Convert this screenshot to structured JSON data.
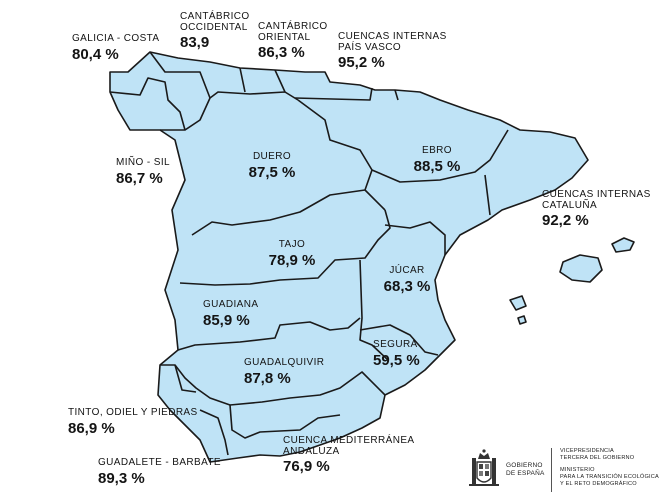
{
  "colors": {
    "basin_fill": "#bfe3f6",
    "border": "#1a1a1a",
    "text": "#141414"
  },
  "basins": [
    {
      "id": "galicia-costa",
      "name": "GALICIA - COSTA",
      "value": "80,4 %"
    },
    {
      "id": "cantabrico-occidental",
      "name": "CANTÁBRICO OCCIDENTAL",
      "name_lines": [
        "CANTÁBRICO",
        "OCCIDENTAL"
      ],
      "value": "83,9"
    },
    {
      "id": "cantabrico-oriental",
      "name": "CANTÁBRICO ORIENTAL",
      "name_lines": [
        "CANTÁBRICO",
        "ORIENTAL"
      ],
      "value": "86,3 %"
    },
    {
      "id": "cuencas-internas-pais-vasco",
      "name": "CUENCAS INTERNAS PAÍS VASCO",
      "name_lines": [
        "CUENCAS INTERNAS",
        "PAÍS VASCO"
      ],
      "value": "95,2 %"
    },
    {
      "id": "mino-sil",
      "name": "MIÑO - SIL",
      "value": "86,7 %"
    },
    {
      "id": "duero",
      "name": "DUERO",
      "value": "87,5 %"
    },
    {
      "id": "ebro",
      "name": "EBRO",
      "value": "88,5 %"
    },
    {
      "id": "cuencas-internas-cataluna",
      "name": "CUENCAS INTERNAS CATALUÑA",
      "name_lines": [
        "CUENCAS INTERNAS",
        "CATALUÑA"
      ],
      "value": "92,2 %"
    },
    {
      "id": "tajo",
      "name": "TAJO",
      "value": "78,9 %"
    },
    {
      "id": "jucar",
      "name": "JÚCAR",
      "value": "68,3 %"
    },
    {
      "id": "guadiana",
      "name": "GUADIANA",
      "value": "85,9 %"
    },
    {
      "id": "segura",
      "name": "SEGURA",
      "value": "59,5 %"
    },
    {
      "id": "guadalquivir",
      "name": "GUADALQUIVIR",
      "value": "87,8 %"
    },
    {
      "id": "tinto-odiel-piedras",
      "name": "TINTO, ODIEL Y PIEDRAS",
      "value": "86,9 %"
    },
    {
      "id": "guadalete-barbate",
      "name": "GUADALETE - BARBATE",
      "value": "89,3 %"
    },
    {
      "id": "cuenca-mediterranea-andaluza",
      "name": "CUENCA MEDITERRÁNEA ANDALUZA",
      "name_lines": [
        "CUENCA MEDITERRÁNEA",
        "ANDALUZA"
      ],
      "value": "76,9 %"
    }
  ],
  "footer": {
    "government_lines": [
      "GOBIERNO",
      "DE ESPAÑA"
    ],
    "ministry_lines": [
      "VICEPRESIDENCIA",
      "TERCERA DEL GOBIERNO",
      "",
      "MINISTERIO",
      "PARA LA TRANSICIÓN ECOLÓGICA",
      "Y EL RETO DEMOGRÁFICO"
    ],
    "emblem_icon": "coat-of-arms-icon"
  }
}
